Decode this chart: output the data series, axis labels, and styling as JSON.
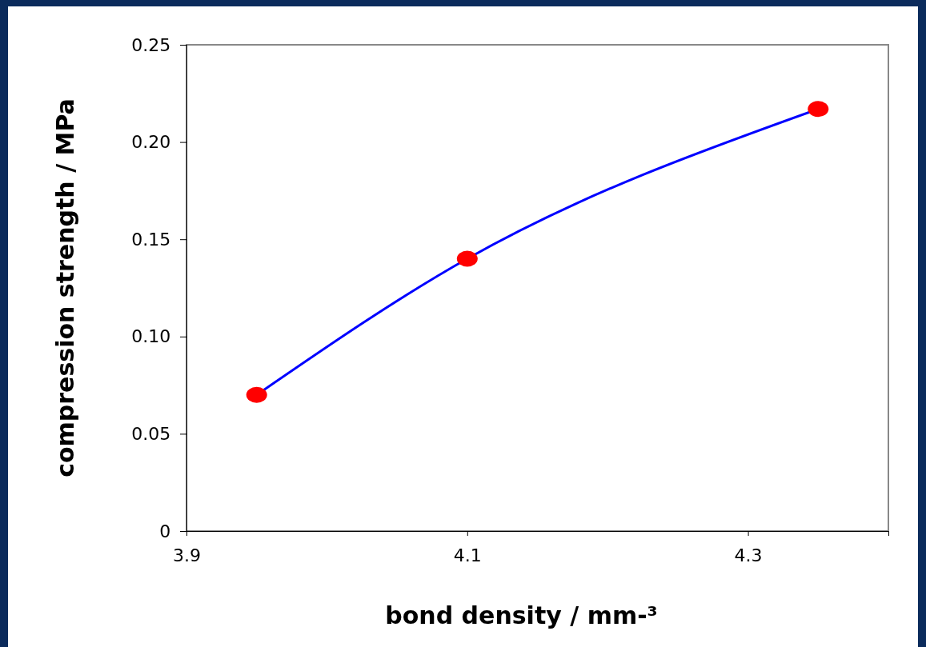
{
  "chart_data": {
    "type": "line",
    "xlabel": "bond density / mm-³",
    "ylabel": "compression strength / MPa",
    "x": [
      3.95,
      4.1,
      4.35
    ],
    "series": [
      {
        "color": "#0000ff",
        "colors": [
          "#ff0000",
          "#ff0000",
          "#ff0000"
        ],
        "values": [
          0.07,
          0.14,
          0.217
        ]
      }
    ],
    "marker": "circle",
    "xlim": [
      3.9,
      4.4
    ],
    "xticks": [
      3.9,
      4.1,
      4.3
    ],
    "ylim": [
      0,
      0.25
    ],
    "yticks": [
      0,
      {
        "value": 0.05,
        "label": "0.05"
      },
      {
        "value": 0.1,
        "label": "0.10"
      },
      {
        "value": 0.15,
        "label": "0.15"
      },
      {
        "value": 0.2,
        "label": "0.20"
      },
      {
        "value": 0.25,
        "label": "0.25"
      }
    ],
    "grid": false
  }
}
